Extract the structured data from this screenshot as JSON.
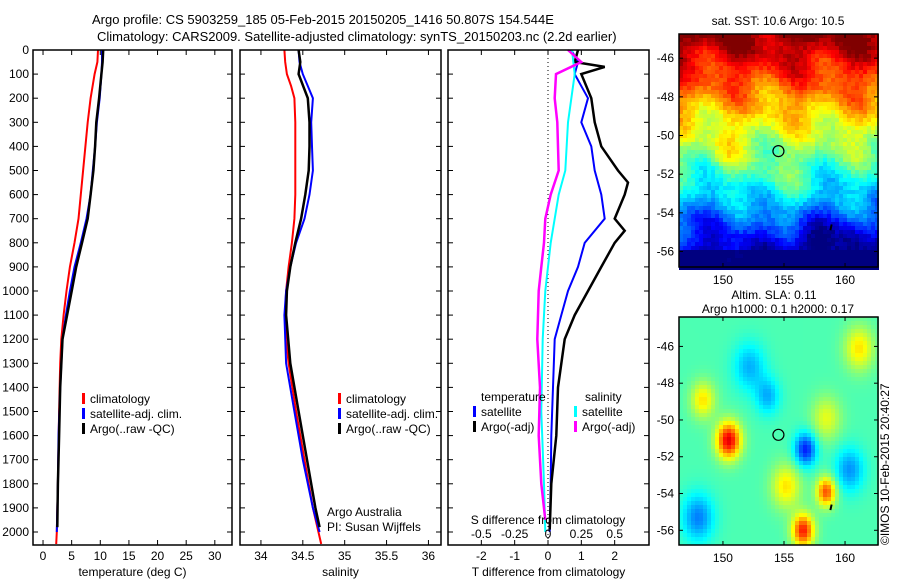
{
  "title": {
    "line1": "Argo profile: CS 5903259_185 05-Feb-2015 20150205_1416 50.807S 154.544E",
    "line2": "Climatology: CARS2009. Satellite-adjusted climatology: synTS_20150203.nc (2.2d earlier)"
  },
  "timestamp": "©IMOS 10-Feb-2015 20:40:27",
  "chart_data": [
    {
      "type": "line",
      "xlabel": "temperature (deg C)",
      "ylabel": "",
      "xlim": [
        -1.75,
        33
      ],
      "ylim": [
        2054,
        0
      ],
      "xticks": [
        "0",
        "5",
        "10",
        "15",
        "20",
        "25",
        "30"
      ],
      "yticks": [
        "0",
        "100",
        "200",
        "300",
        "400",
        "500",
        "600",
        "700",
        "800",
        "900",
        "1000",
        "1100",
        "1200",
        "1300",
        "1400",
        "1500",
        "1600",
        "1700",
        "1800",
        "1900",
        "2000"
      ],
      "legend": [
        "climatology",
        "satellite-adj. clim.",
        "Argo(..raw -QC)"
      ],
      "series": [
        {
          "name": "climatology",
          "color": "#ff0000",
          "depth": [
            0,
            50,
            100,
            200,
            300,
            400,
            500,
            600,
            700,
            800,
            900,
            1000,
            1100,
            1200,
            1300,
            1500,
            1800,
            2000,
            2050
          ],
          "values": [
            9.6,
            9.5,
            9.0,
            8.3,
            7.8,
            7.4,
            7.0,
            6.6,
            6.2,
            5.5,
            4.7,
            4.1,
            3.6,
            3.2,
            3.0,
            2.8,
            2.6,
            2.4,
            2.3
          ]
        },
        {
          "name": "satellite-adj. clim.",
          "color": "#0000ff",
          "depth": [
            0,
            50,
            100,
            200,
            300,
            400,
            500,
            600,
            700,
            800,
            900,
            1000,
            1100,
            1200,
            1400,
            1600,
            1800,
            2000
          ],
          "values": [
            10.3,
            10.3,
            10.2,
            9.9,
            9.4,
            9.1,
            8.7,
            8.3,
            7.6,
            6.6,
            5.5,
            4.7,
            4.0,
            3.4,
            3.0,
            2.7,
            2.6,
            2.4
          ]
        },
        {
          "name": "Argo(..raw -QC)",
          "color": "#000000",
          "depth": [
            0,
            50,
            100,
            200,
            300,
            400,
            500,
            600,
            700,
            800,
            900,
            1000,
            1100,
            1200,
            1400,
            1600,
            1800,
            1980
          ],
          "values": [
            10.5,
            10.4,
            10.2,
            9.8,
            9.3,
            9.1,
            8.8,
            8.3,
            7.8,
            6.8,
            5.8,
            5.0,
            4.2,
            3.4,
            3.0,
            2.8,
            2.6,
            2.5
          ]
        }
      ]
    },
    {
      "type": "line",
      "xlabel": "salinity",
      "ylabel": "",
      "xlim": [
        33.75,
        36.15
      ],
      "ylim": [
        2054,
        0
      ],
      "xticks": [
        "34",
        "34.5",
        "35",
        "35.5",
        "36"
      ],
      "legend": [
        "climatology",
        "satellite-adj. clim.",
        "Argo(..raw -QC)"
      ],
      "annotations": [
        "Argo Australia",
        "PI: Susan Wijffels"
      ],
      "series": [
        {
          "name": "climatology",
          "color": "#ff0000",
          "depth": [
            0,
            50,
            100,
            150,
            200,
            300,
            400,
            500,
            600,
            700,
            800,
            900,
            1000,
            1100,
            1200,
            1300,
            1500,
            1700,
            1900,
            2050
          ],
          "values": [
            34.28,
            34.29,
            34.31,
            34.36,
            34.4,
            34.41,
            34.41,
            34.41,
            34.41,
            34.4,
            34.37,
            34.33,
            34.3,
            34.29,
            34.3,
            34.33,
            34.42,
            34.52,
            34.62,
            34.72
          ]
        },
        {
          "name": "satellite-adj. clim.",
          "color": "#0000ff",
          "depth": [
            0,
            50,
            100,
            200,
            300,
            400,
            500,
            600,
            700,
            800,
            900,
            1000,
            1100,
            1300,
            1500,
            1700,
            1900,
            2000
          ],
          "values": [
            34.45,
            34.46,
            34.5,
            34.62,
            34.6,
            34.61,
            34.62,
            34.58,
            34.52,
            34.42,
            34.35,
            34.3,
            34.28,
            34.3,
            34.4,
            34.5,
            34.62,
            34.7
          ]
        },
        {
          "name": "Argo(..raw -QC)",
          "color": "#000000",
          "depth": [
            0,
            50,
            100,
            200,
            300,
            400,
            500,
            600,
            700,
            800,
            900,
            1000,
            1100,
            1300,
            1500,
            1700,
            1900,
            1980
          ],
          "values": [
            34.45,
            34.47,
            34.45,
            34.56,
            34.58,
            34.58,
            34.57,
            34.53,
            34.48,
            34.41,
            34.35,
            34.31,
            34.3,
            34.35,
            34.45,
            34.55,
            34.65,
            34.7
          ]
        }
      ]
    },
    {
      "type": "line",
      "xlabel": "T difference from climatology",
      "x2label": "S difference from climatology",
      "ylabel": "",
      "xlim": [
        -3,
        3.03
      ],
      "x2lim": [
        -0.75,
        0.7575
      ],
      "ylim": [
        2054,
        0
      ],
      "xticks": [
        "-2",
        "-1",
        "0",
        "1",
        "2"
      ],
      "x2ticks": [
        "-0.5",
        "-0.25",
        "0",
        "0.25",
        "0.5"
      ],
      "legend": {
        "temperature_header": "temperature",
        "salinity_header": "salinity",
        "items": [
          "satellite",
          "Argo(-adj)",
          "satellite",
          "Argo(-adj)"
        ]
      },
      "series": [
        {
          "name": "temperature satellite",
          "variable": "T",
          "color": "#0000ff",
          "depth": [
            0,
            50,
            100,
            200,
            300,
            400,
            500,
            600,
            700,
            800,
            900,
            1000,
            1100,
            1200,
            1400,
            1600,
            1800,
            2000
          ],
          "values": [
            0.7,
            0.9,
            0.8,
            1.2,
            1.0,
            1.3,
            1.4,
            1.6,
            1.7,
            1.1,
            0.9,
            0.6,
            0.4,
            0.2,
            0.15,
            0.1,
            0.08,
            0.05
          ]
        },
        {
          "name": "temperature Argo(-adj)",
          "variable": "T",
          "color": "#000000",
          "depth": [
            0,
            50,
            70,
            100,
            200,
            300,
            400,
            500,
            550,
            600,
            700,
            750,
            800,
            900,
            1000,
            1100,
            1200,
            1400,
            1600,
            1800,
            1990
          ],
          "values": [
            0.9,
            0.8,
            1.7,
            1.0,
            1.3,
            1.4,
            1.6,
            2.1,
            2.4,
            2.3,
            2.0,
            2.3,
            2.0,
            1.6,
            1.2,
            0.8,
            0.5,
            0.3,
            0.25,
            0.1,
            0.05
          ]
        },
        {
          "name": "salinity satellite",
          "variable": "S",
          "color": "#00ffff",
          "depth": [
            0,
            100,
            300,
            500,
            600,
            800,
            1000,
            1200,
            1500,
            1800,
            2000
          ],
          "values": [
            0.18,
            0.2,
            0.15,
            0.13,
            0.08,
            0.02,
            -0.02,
            -0.04,
            -0.05,
            -0.03,
            -0.02
          ]
        },
        {
          "name": "salinity Argo(-adj)",
          "variable": "S",
          "color": "#ff00ff",
          "depth": [
            0,
            50,
            100,
            200,
            300,
            500,
            600,
            700,
            800,
            900,
            1000,
            1200,
            1400,
            1600,
            1800,
            1950
          ],
          "values": [
            0.15,
            0.25,
            0.06,
            0.05,
            0.07,
            0.08,
            0.02,
            -0.02,
            -0.03,
            -0.05,
            -0.07,
            -0.08,
            -0.06,
            -0.07,
            -0.05,
            -0.02
          ]
        }
      ]
    },
    {
      "type": "heatmap",
      "title": "sat. SST: 10.6 Argo: 10.5",
      "xlim": [
        146.4,
        162.7
      ],
      "ylim": [
        -56.8,
        -44.75
      ],
      "xticks": [
        "150",
        "155",
        "160"
      ],
      "yticks": [
        "-46",
        "-48",
        "-50",
        "-52",
        "-54",
        "-56"
      ],
      "marker": {
        "lon": 154.544,
        "lat": -50.807
      }
    },
    {
      "type": "heatmap",
      "title": "Altim. SLA: 0.11",
      "subtitle": "Argo h1000: 0.1 h2000: 0.17",
      "xlim": [
        146.4,
        162.7
      ],
      "ylim": [
        -56.8,
        -44.4
      ],
      "xticks": [
        "150",
        "155",
        "160"
      ],
      "yticks": [
        "-46",
        "-48",
        "-50",
        "-52",
        "-54",
        "-56"
      ],
      "marker": {
        "lon": 154.544,
        "lat": -50.807
      }
    }
  ]
}
